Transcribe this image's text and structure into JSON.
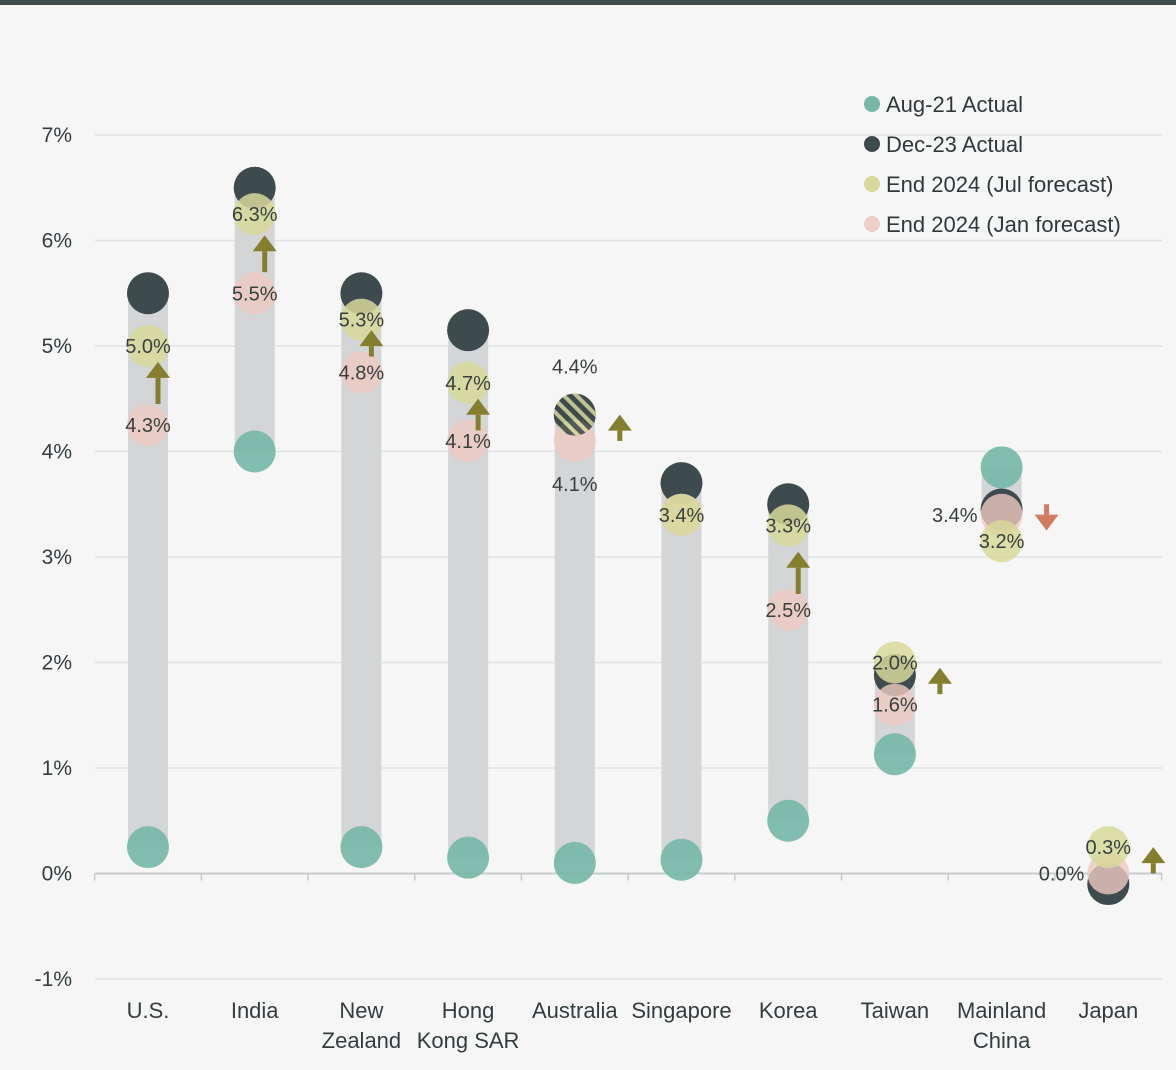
{
  "chart_data": {
    "type": "scatter",
    "ylim": [
      -1,
      7
    ],
    "yticks": [
      -1,
      0,
      1,
      2,
      3,
      4,
      5,
      6,
      7
    ],
    "ytick_labels": [
      "-1%",
      "0%",
      "1%",
      "2%",
      "3%",
      "4%",
      "5%",
      "6%",
      "7%"
    ],
    "categories": [
      {
        "lines": [
          "U.S."
        ]
      },
      {
        "lines": [
          "India"
        ]
      },
      {
        "lines": [
          "New",
          "Zealand"
        ]
      },
      {
        "lines": [
          "Hong",
          "Kong SAR"
        ]
      },
      {
        "lines": [
          "Australia"
        ]
      },
      {
        "lines": [
          "Singapore"
        ]
      },
      {
        "lines": [
          "Korea"
        ]
      },
      {
        "lines": [
          "Taiwan"
        ]
      },
      {
        "lines": [
          "Mainland",
          "China"
        ]
      },
      {
        "lines": [
          "Japan"
        ]
      }
    ],
    "series": [
      {
        "name": "Aug-21 Actual",
        "color": "#77b8a8",
        "values": [
          0.25,
          4.0,
          0.25,
          0.15,
          0.1,
          0.13,
          0.5,
          1.13,
          3.85,
          -0.1
        ]
      },
      {
        "name": "Dec-23 Actual",
        "color": "#3d4b4e",
        "values": [
          5.5,
          6.5,
          5.5,
          5.15,
          4.35,
          3.7,
          3.5,
          1.88,
          3.45,
          -0.1
        ]
      },
      {
        "name": "End 2024 (Jul forecast)",
        "color": "#d8d89a",
        "values": [
          5.0,
          6.25,
          5.25,
          4.65,
          4.35,
          3.4,
          3.3,
          2.0,
          3.15,
          0.25
        ]
      },
      {
        "name": "End 2024 (Jan forecast)",
        "color": "#efc9c1",
        "values": [
          4.25,
          5.5,
          4.75,
          4.1,
          4.1,
          3.4,
          2.5,
          1.6,
          3.4,
          0.0
        ]
      }
    ],
    "range_bars": [
      {
        "low": 0.25,
        "high": 5.5
      },
      {
        "low": 4.0,
        "high": 6.5
      },
      {
        "low": 0.25,
        "high": 5.5
      },
      {
        "low": 0.15,
        "high": 5.15
      },
      {
        "low": 0.1,
        "high": 4.35
      },
      {
        "low": 0.13,
        "high": 3.7
      },
      {
        "low": 0.5,
        "high": 3.5
      },
      {
        "low": 1.13,
        "high": 1.88
      },
      {
        "low": 3.45,
        "high": 3.85
      },
      {
        "low": -0.1,
        "high": 0.0
      }
    ],
    "labels": [
      {
        "cat": 0,
        "v": 5.0,
        "text": "5.0%",
        "pos": "center"
      },
      {
        "cat": 0,
        "v": 4.25,
        "text": "4.3%",
        "pos": "center"
      },
      {
        "cat": 1,
        "v": 6.25,
        "text": "6.3%",
        "pos": "center"
      },
      {
        "cat": 1,
        "v": 5.5,
        "text": "5.5%",
        "pos": "center"
      },
      {
        "cat": 2,
        "v": 5.25,
        "text": "5.3%",
        "pos": "center"
      },
      {
        "cat": 2,
        "v": 4.75,
        "text": "4.8%",
        "pos": "center"
      },
      {
        "cat": 3,
        "v": 4.65,
        "text": "4.7%",
        "pos": "center"
      },
      {
        "cat": 3,
        "v": 4.1,
        "text": "4.1%",
        "pos": "center"
      },
      {
        "cat": 4,
        "v": 4.4,
        "text": "4.4%",
        "pos": "above"
      },
      {
        "cat": 4,
        "v": 4.1,
        "text": "4.1%",
        "pos": "below"
      },
      {
        "cat": 5,
        "v": 3.4,
        "text": "3.4%",
        "pos": "center"
      },
      {
        "cat": 6,
        "v": 3.3,
        "text": "3.3%",
        "pos": "center"
      },
      {
        "cat": 6,
        "v": 2.5,
        "text": "2.5%",
        "pos": "center"
      },
      {
        "cat": 7,
        "v": 2.0,
        "text": "2.0%",
        "pos": "center"
      },
      {
        "cat": 7,
        "v": 1.6,
        "text": "1.6%",
        "pos": "center"
      },
      {
        "cat": 8,
        "v": 3.4,
        "text": "3.4%",
        "pos": "left"
      },
      {
        "cat": 8,
        "v": 3.15,
        "text": "3.2%",
        "pos": "center"
      },
      {
        "cat": 9,
        "v": 0.25,
        "text": "0.3%",
        "pos": "center"
      },
      {
        "cat": 9,
        "v": 0.0,
        "text": "0.0%",
        "pos": "left"
      }
    ],
    "arrows": [
      {
        "cat": 0,
        "direction": "up",
        "from": 4.45,
        "to": 4.85,
        "style": "stem"
      },
      {
        "cat": 1,
        "direction": "up",
        "from": 5.7,
        "to": 6.05,
        "style": "stem"
      },
      {
        "cat": 2,
        "direction": "up",
        "from": 4.9,
        "to": 5.15,
        "style": "stem"
      },
      {
        "cat": 3,
        "direction": "up",
        "from": 4.2,
        "to": 4.5,
        "style": "stem"
      },
      {
        "cat": 4,
        "direction": "up",
        "from": 4.1,
        "to": 4.35,
        "style": "side"
      },
      {
        "cat": 6,
        "direction": "up",
        "from": 2.65,
        "to": 3.05,
        "style": "stem"
      },
      {
        "cat": 7,
        "direction": "up",
        "from": 1.7,
        "to": 1.95,
        "style": "side"
      },
      {
        "cat": 8,
        "direction": "down",
        "from": 3.5,
        "to": 3.25,
        "style": "side"
      },
      {
        "cat": 9,
        "direction": "up",
        "from": 0.0,
        "to": 0.25,
        "style": "side"
      }
    ],
    "arrow_colors": {
      "up": "#837f2c",
      "down": "#d27a62"
    },
    "grid": true,
    "legend": "top-right"
  }
}
